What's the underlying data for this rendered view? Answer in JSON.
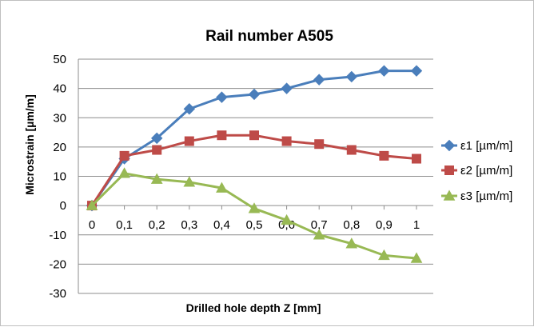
{
  "chart_data": {
    "type": "line",
    "title": "Rail number A505",
    "xlabel": "Drilled hole depth Z [mm]",
    "ylabel": "Microstrain [µm/m]",
    "categories": [
      "0",
      "0,1",
      "0,2",
      "0,3",
      "0,4",
      "0,5",
      "0,6",
      "0,7",
      "0,8",
      "0,9",
      "1"
    ],
    "ylim": [
      -30,
      50
    ],
    "yticks": [
      50,
      40,
      30,
      20,
      10,
      0,
      -10,
      -20,
      -30
    ],
    "grid": true,
    "legend_position": "right",
    "series": [
      {
        "name": "ε1 [µm/m]",
        "color": "#4a7ebb",
        "marker": "diamond",
        "values": [
          0,
          16,
          23,
          33,
          37,
          38,
          40,
          43,
          44,
          46,
          46
        ]
      },
      {
        "name": "ε2 [µm/m]",
        "color": "#be4b48",
        "marker": "square",
        "values": [
          0,
          17,
          19,
          22,
          24,
          24,
          22,
          21,
          19,
          17,
          16
        ]
      },
      {
        "name": "ε3 [µm/m]",
        "color": "#98b954",
        "marker": "triangle",
        "values": [
          0,
          11,
          9,
          8,
          6,
          -1,
          -5,
          -10,
          -13,
          -17,
          -18
        ]
      }
    ]
  }
}
